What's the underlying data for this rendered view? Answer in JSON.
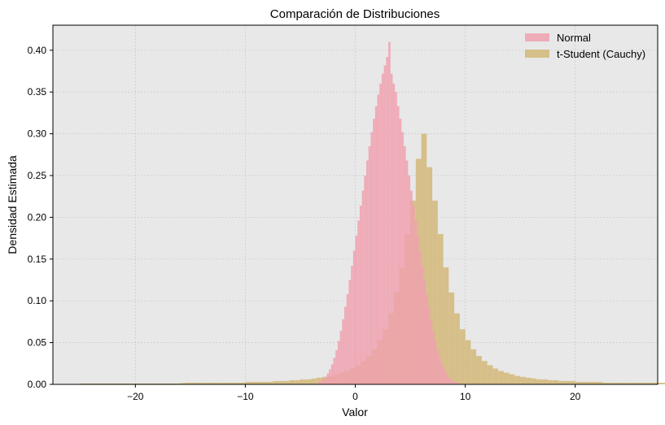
{
  "chart_data": {
    "type": "bar",
    "title": "Comparación de Distribuciones",
    "xlabel": "Valor",
    "ylabel": "Densidad Estimada",
    "xlim": [
      -27.5,
      27.5
    ],
    "ylim": [
      0,
      0.43
    ],
    "xticks": [
      -20,
      -10,
      0,
      10,
      20
    ],
    "xtick_labels": [
      "−20",
      "−10",
      "0",
      "10",
      "20"
    ],
    "yticks": [
      0.0,
      0.05,
      0.1,
      0.15,
      0.2,
      0.25,
      0.3,
      0.35,
      0.4
    ],
    "ytick_labels": [
      "0.00",
      "0.05",
      "0.10",
      "0.15",
      "0.20",
      "0.25",
      "0.30",
      "0.35",
      "0.40"
    ],
    "grid": true,
    "legend_position": "top-right",
    "background_color": "#e8e8e8",
    "grid_color": "#c8c8c8",
    "series": [
      {
        "name": "Normal",
        "color": "#f0a1af",
        "opacity": 0.85,
        "bin_width": 0.2,
        "bin_start": -3.4,
        "values": [
          0.003,
          0.004,
          0.006,
          0.009,
          0.013,
          0.018,
          0.024,
          0.032,
          0.041,
          0.052,
          0.064,
          0.078,
          0.093,
          0.108,
          0.125,
          0.142,
          0.16,
          0.178,
          0.196,
          0.214,
          0.232,
          0.25,
          0.268,
          0.285,
          0.302,
          0.318,
          0.333,
          0.347,
          0.36,
          0.372,
          0.382,
          0.392,
          0.41,
          0.372,
          0.36,
          0.35,
          0.333,
          0.318,
          0.302,
          0.285,
          0.268,
          0.25,
          0.232,
          0.214,
          0.196,
          0.178,
          0.16,
          0.142,
          0.125,
          0.108,
          0.093,
          0.078,
          0.064,
          0.052,
          0.041,
          0.032,
          0.024,
          0.018,
          0.013,
          0.009,
          0.006,
          0.004,
          0.003,
          0.002
        ]
      },
      {
        "name": "t-Student (Cauchy)",
        "color": "#d4bb80",
        "opacity": 0.92,
        "bin_width": 0.5,
        "bin_start": -25,
        "values": [
          0.001,
          0.001,
          0.001,
          0.001,
          0.001,
          0.001,
          0.001,
          0.001,
          0.001,
          0.001,
          0.001,
          0.001,
          0.001,
          0.001,
          0.001,
          0.001,
          0.001,
          0.001,
          0.0015,
          0.002,
          0.002,
          0.002,
          0.002,
          0.002,
          0.002,
          0.002,
          0.002,
          0.002,
          0.002,
          0.002,
          0.003,
          0.003,
          0.003,
          0.003,
          0.003,
          0.004,
          0.004,
          0.004,
          0.005,
          0.005,
          0.006,
          0.006,
          0.007,
          0.008,
          0.009,
          0.01,
          0.012,
          0.014,
          0.016,
          0.019,
          0.023,
          0.028,
          0.034,
          0.042,
          0.053,
          0.066,
          0.085,
          0.11,
          0.14,
          0.18,
          0.22,
          0.27,
          0.3,
          0.26,
          0.22,
          0.18,
          0.14,
          0.11,
          0.085,
          0.066,
          0.053,
          0.042,
          0.034,
          0.028,
          0.023,
          0.019,
          0.016,
          0.014,
          0.012,
          0.01,
          0.009,
          0.008,
          0.007,
          0.006,
          0.006,
          0.005,
          0.005,
          0.004,
          0.004,
          0.004,
          0.003,
          0.003,
          0.003,
          0.003,
          0.003,
          0.002,
          0.002,
          0.002,
          0.002,
          0.002,
          0.002,
          0.002,
          0.002,
          0.002,
          0.002,
          0.002,
          0.002,
          0.002,
          0.002,
          0.002,
          0.001,
          0.001,
          0.001,
          0.001,
          0.001,
          0.001,
          0.001,
          0.001,
          0.001,
          0.001
        ]
      }
    ]
  }
}
